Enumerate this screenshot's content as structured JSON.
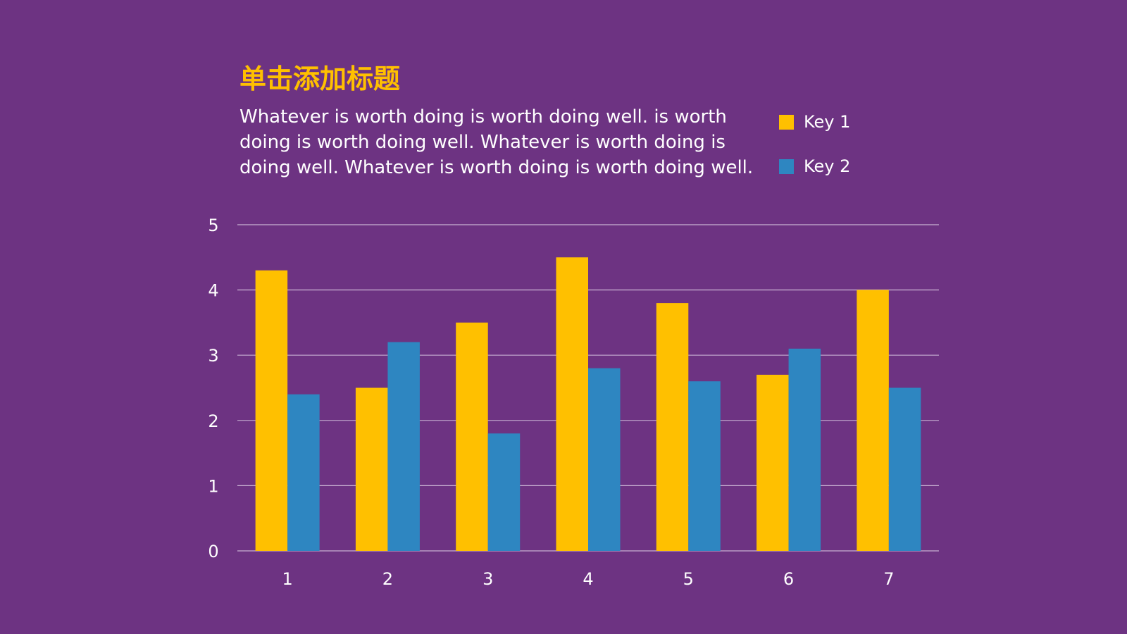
{
  "slide": {
    "title": "单击添加标题",
    "body": "Whatever is worth doing is worth doing well. is worth doing is worth doing well. Whatever is worth doing is doing well. Whatever is worth doing is worth doing well."
  },
  "colors": {
    "background": "#6D3382",
    "title": "#FFC000",
    "text": "#FFFFFF",
    "gridline": "#C9B1D3",
    "key1": "#FFC000",
    "key2": "#2E86C1"
  },
  "chart_data": {
    "type": "bar",
    "categories": [
      "1",
      "2",
      "3",
      "4",
      "5",
      "6",
      "7"
    ],
    "series": [
      {
        "name": "Key 1",
        "values": [
          4.3,
          2.5,
          3.5,
          4.5,
          3.8,
          2.7,
          4.0
        ]
      },
      {
        "name": "Key 2",
        "values": [
          2.4,
          3.2,
          1.8,
          2.8,
          2.6,
          3.1,
          2.5
        ]
      }
    ],
    "ylim": [
      0,
      5
    ],
    "yticks": [
      "0",
      "1",
      "2",
      "3",
      "4",
      "5"
    ],
    "grid": true,
    "legend_position": "top-right"
  }
}
